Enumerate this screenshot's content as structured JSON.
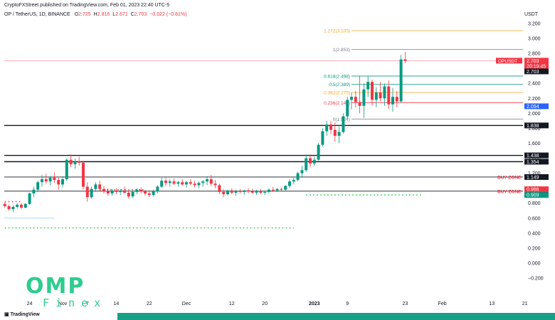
{
  "header": {
    "published": "CryptoFXStreet published on TradingView.com, Feb 01, 2023 22:40 UTC-5",
    "symbol": "OP / TetherUS, 1D, BINANCE",
    "ohlc": [
      {
        "label": "O",
        "value": "2.725"
      },
      {
        "label": "H",
        "value": "2.816"
      },
      {
        "label": "L",
        "value": "2.671"
      },
      {
        "label": "C",
        "value": "2.703"
      },
      {
        "label": "",
        "value": "−0.022 (−0.81%)"
      }
    ]
  },
  "unit": "USDT",
  "tv_logo": "TradingView",
  "watermark": {
    "line1": "OMP",
    "line2": "Finex"
  },
  "colors": {
    "up": "#089981",
    "down": "#f23645",
    "fib_orange": "#f5a623",
    "fib_green": "#089981",
    "fib_red": "#f23645",
    "fib_grey": "#787b86",
    "green_dots": "#2ecc40",
    "red_dots": "#f23645",
    "support": "#131722"
  },
  "chart_data": {
    "type": "candlestick",
    "y_ticks": [
      "3.200",
      "3.000",
      "2.800",
      "2.600",
      "2.400",
      "2.200",
      "2.000",
      "1.800",
      "1.600",
      "1.400",
      "1.200",
      "1.000",
      "0.800",
      "0.600",
      "0.400",
      "0.200",
      "0.000",
      "−0.200"
    ],
    "ylim": [
      -0.2,
      3.2
    ],
    "x_ticks": [
      {
        "label": "24",
        "day": -8,
        "bold": false
      },
      {
        "label": "Nov",
        "day": 0,
        "bold": false
      },
      {
        "label": "7",
        "day": 6,
        "bold": false
      },
      {
        "label": "14",
        "day": 13,
        "bold": false
      },
      {
        "label": "22",
        "day": 21,
        "bold": false
      },
      {
        "label": "Dec",
        "day": 30,
        "bold": false
      },
      {
        "label": "12",
        "day": 41,
        "bold": false
      },
      {
        "label": "20",
        "day": 49,
        "bold": false
      },
      {
        "label": "2023",
        "day": 61,
        "bold": true
      },
      {
        "label": "9",
        "day": 69,
        "bold": false
      },
      {
        "label": "23",
        "day": 83,
        "bold": false
      },
      {
        "label": "Feb",
        "day": 92,
        "bold": false
      },
      {
        "label": "13",
        "day": 104,
        "bold": false
      },
      {
        "label": "21",
        "day": 112,
        "bold": false
      }
    ],
    "candles": [
      [
        0.79,
        0.82,
        0.74,
        0.76
      ],
      [
        0.76,
        0.78,
        0.7,
        0.72
      ],
      [
        0.72,
        0.77,
        0.68,
        0.75
      ],
      [
        0.75,
        0.8,
        0.73,
        0.78
      ],
      [
        0.78,
        0.8,
        0.72,
        0.74
      ],
      [
        0.74,
        0.8,
        0.73,
        0.79
      ],
      [
        0.79,
        0.94,
        0.78,
        0.93
      ],
      [
        0.93,
        1.02,
        0.88,
        0.98
      ],
      [
        0.98,
        1.1,
        0.95,
        1.08
      ],
      [
        1.08,
        1.18,
        1.02,
        1.12
      ],
      [
        1.12,
        1.19,
        1.06,
        1.09
      ],
      [
        1.09,
        1.16,
        1.04,
        1.14
      ],
      [
        1.14,
        1.21,
        1.07,
        1.11
      ],
      [
        1.11,
        1.14,
        0.98,
        1.05
      ],
      [
        1.05,
        1.16,
        1.01,
        1.12
      ],
      [
        1.12,
        1.4,
        1.1,
        1.38
      ],
      [
        1.38,
        1.45,
        1.28,
        1.32
      ],
      [
        1.32,
        1.4,
        1.26,
        1.36
      ],
      [
        1.36,
        1.42,
        1.3,
        1.34
      ],
      [
        1.34,
        1.36,
        0.98,
        1.02
      ],
      [
        1.02,
        1.08,
        0.82,
        0.88
      ],
      [
        0.88,
        1.02,
        0.86,
        0.99
      ],
      [
        0.99,
        1.08,
        0.95,
        1.05
      ],
      [
        1.05,
        1.1,
        0.96,
        0.99
      ],
      [
        0.99,
        1.03,
        0.93,
        0.96
      ],
      [
        0.96,
        1.0,
        0.9,
        0.93
      ],
      [
        0.93,
        0.99,
        0.9,
        0.97
      ],
      [
        0.97,
        1.0,
        0.92,
        0.95
      ],
      [
        0.95,
        0.99,
        0.91,
        0.97
      ],
      [
        0.97,
        1.02,
        0.93,
        0.94
      ],
      [
        0.94,
        0.97,
        0.86,
        0.89
      ],
      [
        0.89,
        0.97,
        0.87,
        0.95
      ],
      [
        0.95,
        1.0,
        0.92,
        0.98
      ],
      [
        0.98,
        1.01,
        0.93,
        0.96
      ],
      [
        0.96,
        0.98,
        0.9,
        0.93
      ],
      [
        0.93,
        0.96,
        0.88,
        0.91
      ],
      [
        0.91,
        0.98,
        0.89,
        0.96
      ],
      [
        0.96,
        1.04,
        0.93,
        1.02
      ],
      [
        1.02,
        1.14,
        1.0,
        1.1
      ],
      [
        1.1,
        1.15,
        1.03,
        1.07
      ],
      [
        1.07,
        1.12,
        1.02,
        1.09
      ],
      [
        1.09,
        1.13,
        1.04,
        1.06
      ],
      [
        1.06,
        1.1,
        1.02,
        1.08
      ],
      [
        1.08,
        1.12,
        1.03,
        1.05
      ],
      [
        1.05,
        1.1,
        1.01,
        1.08
      ],
      [
        1.08,
        1.12,
        1.04,
        1.06
      ],
      [
        1.06,
        1.1,
        1.01,
        1.04
      ],
      [
        1.04,
        1.09,
        1.0,
        1.07
      ],
      [
        1.07,
        1.11,
        1.02,
        1.09
      ],
      [
        1.09,
        1.16,
        1.04,
        1.12
      ],
      [
        1.12,
        1.18,
        1.03,
        1.06
      ],
      [
        1.06,
        1.11,
        1.0,
        1.04
      ],
      [
        1.04,
        1.06,
        0.92,
        0.95
      ],
      [
        0.95,
        0.99,
        0.88,
        0.92
      ],
      [
        0.92,
        0.98,
        0.9,
        0.97
      ],
      [
        0.97,
        1.0,
        0.92,
        0.94
      ],
      [
        0.94,
        0.98,
        0.9,
        0.96
      ],
      [
        0.96,
        0.99,
        0.93,
        0.95
      ],
      [
        0.95,
        0.98,
        0.91,
        0.97
      ],
      [
        0.97,
        1.0,
        0.93,
        0.96
      ],
      [
        0.96,
        0.99,
        0.93,
        0.94
      ],
      [
        0.94,
        0.98,
        0.91,
        0.96
      ],
      [
        0.96,
        0.99,
        0.92,
        0.94
      ],
      [
        0.94,
        0.97,
        0.91,
        0.95
      ],
      [
        0.95,
        1.0,
        0.93,
        0.98
      ],
      [
        0.98,
        1.02,
        0.95,
        0.97
      ],
      [
        0.97,
        1.0,
        0.95,
        0.99
      ],
      [
        0.99,
        1.01,
        0.96,
        0.98
      ],
      [
        0.98,
        1.04,
        0.97,
        1.03
      ],
      [
        1.03,
        1.12,
        1.0,
        1.09
      ],
      [
        1.09,
        1.15,
        1.05,
        1.11
      ],
      [
        1.11,
        1.22,
        1.09,
        1.2
      ],
      [
        1.2,
        1.3,
        1.14,
        1.24
      ],
      [
        1.24,
        1.45,
        1.22,
        1.4
      ],
      [
        1.4,
        1.45,
        1.28,
        1.33
      ],
      [
        1.33,
        1.42,
        1.3,
        1.38
      ],
      [
        1.38,
        1.6,
        1.37,
        1.58
      ],
      [
        1.58,
        1.8,
        1.56,
        1.76
      ],
      [
        1.76,
        1.9,
        1.7,
        1.85
      ],
      [
        1.85,
        1.9,
        1.72,
        1.78
      ],
      [
        1.78,
        1.88,
        1.62,
        1.7
      ],
      [
        1.7,
        1.82,
        1.6,
        1.75
      ],
      [
        1.75,
        2.0,
        1.73,
        1.96
      ],
      [
        1.96,
        2.22,
        1.93,
        2.18
      ],
      [
        2.18,
        2.28,
        2.05,
        2.22
      ],
      [
        2.22,
        2.3,
        2.08,
        2.15
      ],
      [
        2.15,
        2.5,
        2.0,
        2.1
      ],
      [
        2.1,
        2.4,
        1.94,
        2.32
      ],
      [
        2.32,
        2.5,
        2.22,
        2.42
      ],
      [
        2.42,
        2.45,
        2.1,
        2.18
      ],
      [
        2.18,
        2.35,
        2.08,
        2.28
      ],
      [
        2.28,
        2.42,
        2.16,
        2.2
      ],
      [
        2.2,
        2.4,
        2.1,
        2.36
      ],
      [
        2.36,
        2.44,
        2.06,
        2.12
      ],
      [
        2.12,
        2.34,
        2.02,
        2.22
      ],
      [
        2.22,
        2.3,
        2.08,
        2.16
      ],
      [
        2.16,
        2.78,
        2.14,
        2.72
      ],
      [
        2.72,
        2.82,
        2.67,
        2.7
      ]
    ],
    "horizontal_lines": [
      {
        "price": 1.838,
        "label": "1.838"
      },
      {
        "price": 1.438,
        "label": "1.438"
      },
      {
        "price": 1.354,
        "label": "1.354"
      },
      {
        "price": 1.149,
        "label": "1.149",
        "zone": "BUY ZONE"
      },
      {
        "price": 0.96,
        "label": "0.960",
        "zone": "BUY ZONE"
      }
    ],
    "fib_levels": [
      {
        "ratio_label": "1.272(3.105)",
        "price": 3.105,
        "color": "fib_orange"
      },
      {
        "ratio_label": "1(2.853)",
        "price": 2.853,
        "color": "fib_grey"
      },
      {
        "ratio_label": "0.618(2.498)",
        "price": 2.498,
        "color": "fib_green"
      },
      {
        "ratio_label": "0.5(2.389)",
        "price": 2.389,
        "color": "fib_green"
      },
      {
        "ratio_label": "0.382(2.279)",
        "price": 2.279,
        "color": "fib_orange"
      },
      {
        "ratio_label": "0.236(2.143)",
        "price": 2.143,
        "color": "fib_red"
      },
      {
        "ratio_label": "0(1.924)",
        "price": 1.924,
        "color": "fib_grey"
      }
    ],
    "price_tags": [
      {
        "text": "OPUSDT",
        "value": "2.703",
        "price": 2.703,
        "bg": "#f23645"
      },
      {
        "text": "",
        "value": "20:19:45",
        "price": 2.63,
        "bg": "#f23645"
      },
      {
        "text": "",
        "value": "2.703",
        "price": 2.56,
        "bg": "#131722"
      },
      {
        "text": "",
        "value": "2.094",
        "price": 2.094,
        "bg": "#2962ff"
      },
      {
        "text": "",
        "value": "0.986",
        "price": 0.986,
        "bg": "#f23645"
      },
      {
        "text": "",
        "value": "0.909",
        "price": 0.909,
        "bg": "#089981"
      }
    ],
    "dotted_lines": [
      {
        "price": 0.82,
        "from": 0,
        "to": 4,
        "color": "red_dots"
      },
      {
        "price": 0.98,
        "from": 23,
        "to": 34,
        "color": "red_dots"
      },
      {
        "price": 0.909,
        "from": 73,
        "to": 101,
        "color": "green_dots"
      },
      {
        "price": 0.47,
        "from": 0,
        "to": 70,
        "color": "green_dots"
      }
    ],
    "current_price": 2.703
  }
}
